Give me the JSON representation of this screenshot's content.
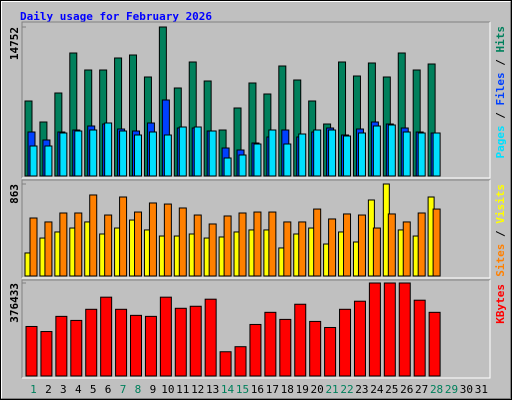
{
  "chart_data": {
    "type": "bar",
    "title": "Daily usage for February 2026",
    "categories": [
      "1",
      "2",
      "3",
      "4",
      "5",
      "6",
      "7",
      "8",
      "9",
      "10",
      "11",
      "12",
      "13",
      "14",
      "15",
      "16",
      "17",
      "18",
      "19",
      "20",
      "21",
      "22",
      "23",
      "24",
      "25",
      "26",
      "27",
      "28",
      "29",
      "30",
      "31"
    ],
    "category_colors": [
      "#00805c",
      "#000000",
      "#000000",
      "#000000",
      "#000000",
      "#000000",
      "#00805c",
      "#00805c",
      "#000000",
      "#000000",
      "#000000",
      "#000000",
      "#000000",
      "#00805c",
      "#00805c",
      "#000000",
      "#000000",
      "#000000",
      "#000000",
      "#000000",
      "#00805c",
      "#00805c",
      "#000000",
      "#000000",
      "#000000",
      "#000000",
      "#000000",
      "#00805c",
      "#00805c",
      "#000000",
      "#000000"
    ],
    "panels": [
      {
        "ylim": [
          0,
          14752
        ],
        "yticks": [
          14752
        ],
        "series": [
          {
            "name": "Pages",
            "color": "#00e0ff",
            "values": [
              2970,
              2970,
              4257,
              4455,
              4554,
              5247,
              4455,
              4059,
              4356,
              4059,
              4851,
              4851,
              4455,
              1782,
              2079,
              3168,
              4554,
              3168,
              4158,
              4554,
              4554,
              3960,
              4257,
              4950,
              5049,
              4356,
              4257,
              4257,
              null,
              null,
              null
            ]
          },
          {
            "name": "Files",
            "color": "#0040ff",
            "values": [
              4356,
              3564,
              4356,
              4554,
              4950,
              5148,
              4653,
              4455,
              5247,
              7524,
              4752,
              4752,
              4455,
              2772,
              2574,
              3267,
              3861,
              4554,
              3861,
              4356,
              4752,
              4059,
              4653,
              5346,
              5148,
              4752,
              4356,
              4257,
              null,
              null,
              null
            ]
          },
          {
            "name": "Hits",
            "color": "#00805c",
            "values": [
              7425,
              5346,
              8217,
              12178,
              10495,
              10495,
              11683,
              11980,
              9802,
              14752,
              8713,
              11287,
              9406,
              4554,
              6733,
              9208,
              8119,
              10891,
              9505,
              7426,
              5148,
              11287,
              9901,
              11188,
              9802,
              12178,
              10495,
              11089,
              null,
              null,
              null
            ]
          }
        ]
      },
      {
        "ylim": [
          0,
          863
        ],
        "yticks": [
          863
        ],
        "series": [
          {
            "name": "Sites",
            "color": "#ff8000",
            "values": [
              544,
              507,
              591,
              591,
              760,
              572,
              741,
              600,
              685,
              675,
              638,
              572,
              488,
              563,
              591,
              600,
              600,
              507,
              507,
              628,
              535,
              582,
              572,
              450,
              582,
              507,
              591,
              628,
              null,
              null,
              null
            ]
          },
          {
            "name": "Visits",
            "color": "#ffff00",
            "values": [
              216,
              356,
              413,
              450,
              507,
              394,
              450,
              525,
              432,
              375,
              375,
              394,
              356,
              366,
              413,
              432,
              432,
              263,
              394,
              450,
              300,
              413,
              319,
              713,
              863,
              432,
              375,
              741,
              null,
              null,
              null
            ]
          }
        ]
      },
      {
        "ylim": [
          0,
          376433
        ],
        "yticks": [
          376433
        ],
        "series": [
          {
            "name": "KBytes",
            "color": "#ff0000",
            "values": [
              200459,
              180004,
              241369,
              225005,
              270006,
              319098,
              270006,
              245460,
              241369,
              319098,
              274097,
              282279,
              310916,
              98184,
              118639,
              208641,
              257733,
              229096,
              290461,
              220914,
              196368,
              270006,
              302734,
              376433,
              376433,
              376433,
              306825,
              257733,
              null,
              null,
              null
            ]
          }
        ]
      }
    ]
  }
}
